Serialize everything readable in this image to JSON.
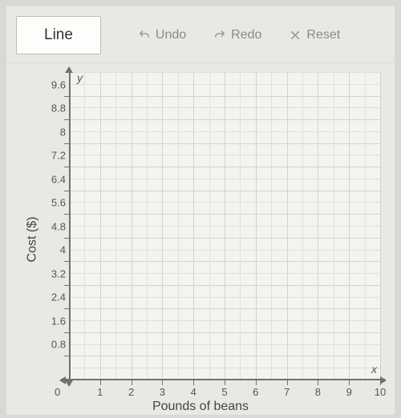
{
  "toolbar": {
    "line_label": "Line",
    "undo_label": "Undo",
    "redo_label": "Redo",
    "reset_label": "Reset"
  },
  "chart": {
    "type": "scatter",
    "x_axis_letter": "x",
    "y_axis_letter": "y",
    "xlabel": "Pounds of beans",
    "ylabel": "Cost ($)",
    "origin_label": "0",
    "xlim": [
      0,
      10
    ],
    "ylim": [
      0,
      10.4
    ],
    "xticks": [
      1,
      2,
      3,
      4,
      5,
      6,
      7,
      8,
      9,
      10
    ],
    "yticks": [
      0.8,
      1.6,
      2.4,
      3.2,
      4,
      4.8,
      5.6,
      6.4,
      7.2,
      8,
      8.8,
      9.6
    ],
    "ytick_labels": [
      "0.8",
      "1.6",
      "2.4",
      "3.2",
      "4",
      "4.8",
      "5.6",
      "6.4",
      "7.2",
      "8",
      "8.8",
      "9.6"
    ],
    "x_minor_step": 0.5,
    "y_minor_step": 0.4,
    "background_color": "#f3f4f0",
    "grid_color": "#d2d3ce",
    "grid_color_minor": "#dfe0db",
    "axis_color": "#707070",
    "label_fontsize": 16,
    "tick_fontsize": 13,
    "series": []
  },
  "colors": {
    "panel_bg": "#e8e9e5",
    "outer_bg": "#d8d9d5",
    "button_bg": "#fdfdfb",
    "button_text": "#333",
    "ctrl_text": "#8a8a85"
  }
}
